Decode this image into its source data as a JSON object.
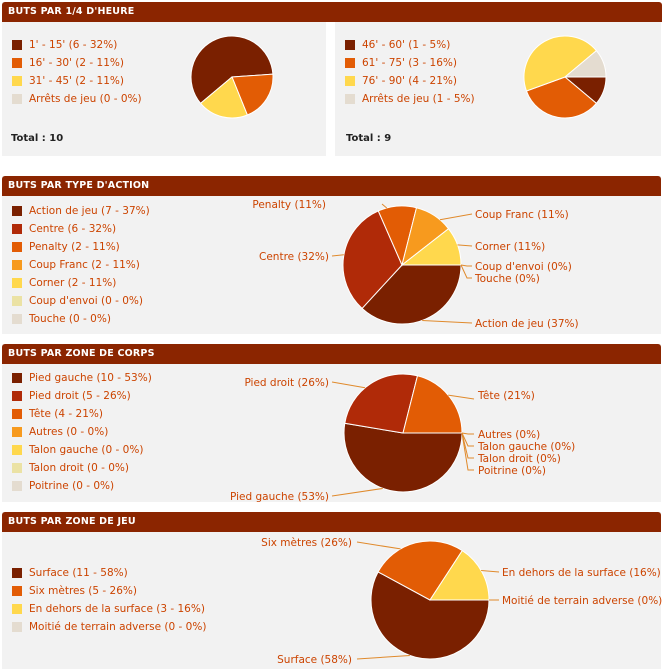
{
  "colors": {
    "header_bg": "#8b2500",
    "label_text": "#cc4400",
    "panel_bg": "#f2f2f2"
  },
  "sections": {
    "quart": {
      "title": "BUTS PAR 1/4 D'HEURE"
    },
    "action": {
      "title": "BUTS PAR TYPE D'ACTION"
    },
    "corps": {
      "title": "BUTS PAR ZONE DE CORPS"
    },
    "jeu": {
      "title": "BUTS PAR ZONE DE JEU"
    }
  },
  "chart_data": [
    {
      "type": "pie",
      "id": "q1",
      "total_label": "Total : 10",
      "slices": [
        {
          "label": "1' - 15' (6 - 32%)",
          "value": 6,
          "color": "#7a2000"
        },
        {
          "label": "16' - 30' (2 - 11%)",
          "value": 2,
          "color": "#e25c05"
        },
        {
          "label": "31' - 45' (2 - 11%)",
          "value": 2,
          "color": "#ffd84d"
        },
        {
          "label": "Arrêts de jeu (0 - 0%)",
          "value": 0,
          "color": "#e4dcd0"
        }
      ]
    },
    {
      "type": "pie",
      "id": "q2",
      "total_label": "Total : 9",
      "slices": [
        {
          "label": "46' - 60' (1 - 5%)",
          "value": 1,
          "color": "#7a2000"
        },
        {
          "label": "61' - 75' (3 - 16%)",
          "value": 3,
          "color": "#e25c05"
        },
        {
          "label": "76' - 90' (4 - 21%)",
          "value": 4,
          "color": "#ffd84d"
        },
        {
          "label": "Arrêts de jeu (1 - 5%)",
          "value": 1,
          "color": "#e4dcd0"
        }
      ]
    },
    {
      "type": "pie",
      "id": "action",
      "slices": [
        {
          "label": "Action de jeu (7 - 37%)",
          "value": 7,
          "color": "#7a2000",
          "callout": "Action de jeu (37%)"
        },
        {
          "label": "Centre (6 - 32%)",
          "value": 6,
          "color": "#b02a08",
          "callout": "Centre (32%)"
        },
        {
          "label": "Penalty (2 - 11%)",
          "value": 2,
          "color": "#e25c05",
          "callout": "Penalty (11%)"
        },
        {
          "label": "Coup Franc (2 - 11%)",
          "value": 2,
          "color": "#f79a1e",
          "callout": "Coup Franc (11%)"
        },
        {
          "label": "Corner (2 - 11%)",
          "value": 2,
          "color": "#ffd84d",
          "callout": "Corner (11%)"
        },
        {
          "label": "Coup d'envoi (0 - 0%)",
          "value": 0,
          "color": "#ebe2a4",
          "callout": "Coup d'envoi (0%)"
        },
        {
          "label": "Touche (0 - 0%)",
          "value": 0,
          "color": "#e4dcd0",
          "callout": "Touche (0%)"
        }
      ]
    },
    {
      "type": "pie",
      "id": "corps",
      "slices": [
        {
          "label": "Pied gauche (10 - 53%)",
          "value": 10,
          "color": "#7a2000",
          "callout": "Pied gauche (53%)"
        },
        {
          "label": "Pied droit (5 - 26%)",
          "value": 5,
          "color": "#b02a08",
          "callout": "Pied droit (26%)"
        },
        {
          "label": "Tête (4 - 21%)",
          "value": 4,
          "color": "#e25c05",
          "callout": "Tête (21%)"
        },
        {
          "label": "Autres (0 - 0%)",
          "value": 0,
          "color": "#f79a1e",
          "callout": "Autres (0%)"
        },
        {
          "label": "Talon gauche (0 - 0%)",
          "value": 0,
          "color": "#ffd84d",
          "callout": "Talon gauche (0%)"
        },
        {
          "label": "Talon droit (0 - 0%)",
          "value": 0,
          "color": "#ebe2a4",
          "callout": "Talon droit (0%)"
        },
        {
          "label": "Poitrine (0 - 0%)",
          "value": 0,
          "color": "#e4dcd0",
          "callout": "Poitrine (0%)"
        }
      ]
    },
    {
      "type": "pie",
      "id": "jeu",
      "slices": [
        {
          "label": "Surface (11 - 58%)",
          "value": 11,
          "color": "#7a2000",
          "callout": "Surface (58%)"
        },
        {
          "label": "Six mètres (5 - 26%)",
          "value": 5,
          "color": "#e25c05",
          "callout": "Six mètres (26%)"
        },
        {
          "label": "En dehors de la surface (3 - 16%)",
          "value": 3,
          "color": "#ffd84d",
          "callout": "En dehors de la surface (16%)"
        },
        {
          "label": "Moitié de terrain adverse (0 - 0%)",
          "value": 0,
          "color": "#e4dcd0",
          "callout": "Moitié de terrain adverse (0%)"
        }
      ]
    }
  ]
}
